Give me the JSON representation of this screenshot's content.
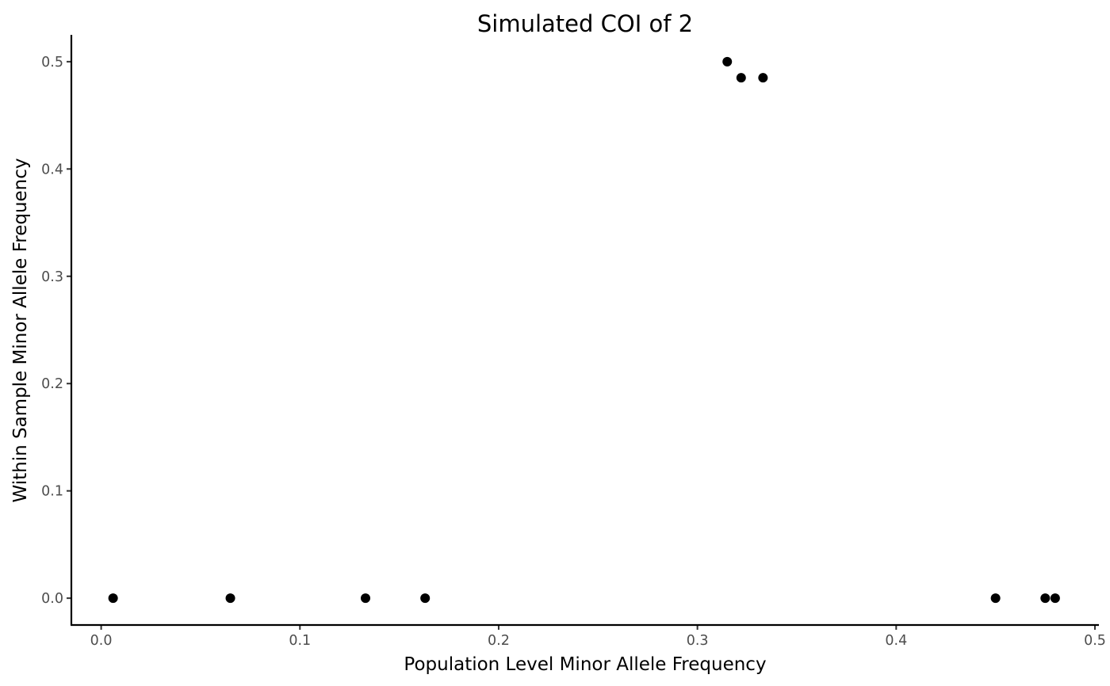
{
  "chart_data": {
    "type": "scatter",
    "title": "Simulated COI of 2",
    "xlabel": "Population Level Minor Allele Frequency",
    "ylabel": "Within Sample Minor Allele Frequency",
    "xlim": [
      -0.015,
      0.502
    ],
    "ylim": [
      -0.025,
      0.525
    ],
    "xticks": [
      "0.0",
      "0.1",
      "0.2",
      "0.3",
      "0.4",
      "0.5"
    ],
    "yticks": [
      "0.0",
      "0.1",
      "0.2",
      "0.3",
      "0.4",
      "0.5"
    ],
    "grid": false,
    "legend": "none",
    "point_color": "#000000",
    "points": [
      {
        "x": 0.006,
        "y": 0.0
      },
      {
        "x": 0.065,
        "y": 0.0
      },
      {
        "x": 0.133,
        "y": 0.0
      },
      {
        "x": 0.163,
        "y": 0.0
      },
      {
        "x": 0.315,
        "y": 0.5
      },
      {
        "x": 0.322,
        "y": 0.485
      },
      {
        "x": 0.333,
        "y": 0.485
      },
      {
        "x": 0.45,
        "y": 0.0
      },
      {
        "x": 0.475,
        "y": 0.0
      },
      {
        "x": 0.48,
        "y": 0.0
      }
    ]
  }
}
